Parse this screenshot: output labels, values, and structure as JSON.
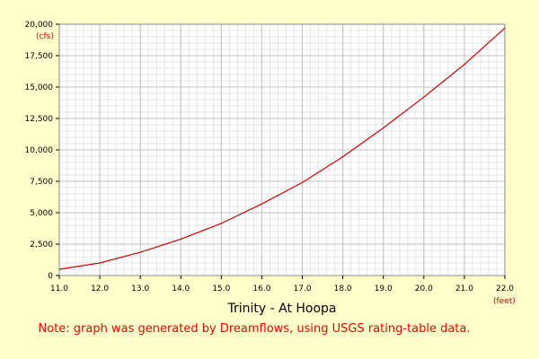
{
  "chart_data": {
    "type": "line",
    "title": "Trinity - At Hoopa",
    "note": "Note: graph was generated by Dreamflows, using USGS rating-table data.",
    "x_unit": "(feet)",
    "y_unit": "(cfs)",
    "xlim": [
      11.0,
      22.0
    ],
    "ylim": [
      0,
      20000
    ],
    "x_ticks": [
      "11.0",
      "12.0",
      "13.0",
      "14.0",
      "15.0",
      "16.0",
      "17.0",
      "18.0",
      "19.0",
      "20.0",
      "21.0",
      "22.0"
    ],
    "y_ticks": [
      "0",
      "2,500",
      "5,000",
      "7,500",
      "10,000",
      "12,500",
      "15,000",
      "17,500",
      "20,000"
    ],
    "grid": true,
    "line_color": "#cc0000",
    "series": [
      {
        "x": [
          11.0,
          12.0,
          13.0,
          14.0,
          15.0,
          16.0,
          17.0,
          18.0,
          19.0,
          20.0,
          21.0,
          22.0
        ],
        "y": [
          500,
          1000,
          1850,
          2900,
          4150,
          5700,
          7400,
          9450,
          11750,
          14200,
          16800,
          19700
        ]
      }
    ]
  }
}
